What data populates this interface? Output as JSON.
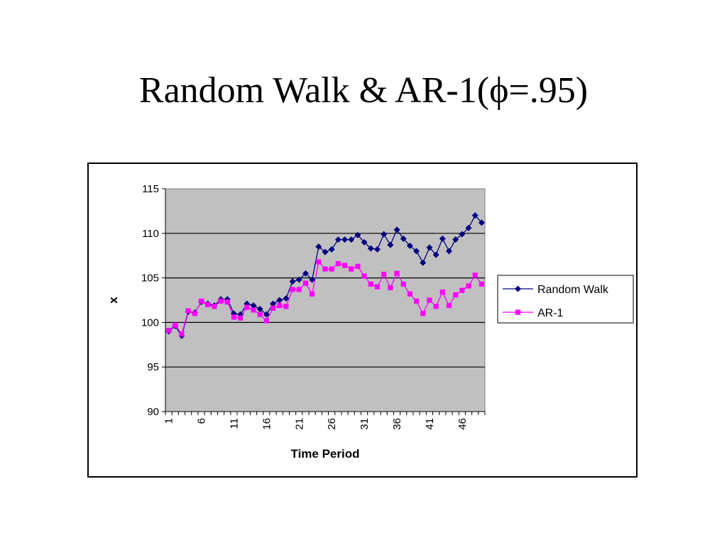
{
  "slide": {
    "title_prefix": "Random Walk & AR-1(",
    "title_symbol": "ϕ",
    "title_suffix": "=.95)"
  },
  "chart_data": {
    "type": "line",
    "xlabel": "Time Period",
    "ylabel": "x",
    "ylim": [
      90,
      115
    ],
    "yticks": [
      90,
      95,
      100,
      105,
      110,
      115
    ],
    "xlim": [
      1,
      49
    ],
    "xticks": [
      1,
      6,
      11,
      16,
      21,
      26,
      31,
      36,
      41,
      46
    ],
    "grid": "horizontal",
    "legend_position": "right",
    "plot_background": "#c0c0c0",
    "x": [
      1,
      2,
      3,
      4,
      5,
      6,
      7,
      8,
      9,
      10,
      11,
      12,
      13,
      14,
      15,
      16,
      17,
      18,
      19,
      20,
      21,
      22,
      23,
      24,
      25,
      26,
      27,
      28,
      29,
      30,
      31,
      32,
      33,
      34,
      35,
      36,
      37,
      38,
      39,
      40,
      41,
      42,
      43,
      44,
      45,
      46,
      47,
      48,
      49
    ],
    "series": [
      {
        "name": "Random Walk",
        "color": "#000080",
        "marker": "diamond",
        "values": [
          99.0,
          99.6,
          98.5,
          101.2,
          101.1,
          102.3,
          102.1,
          101.9,
          102.6,
          102.6,
          101.0,
          100.9,
          102.1,
          101.9,
          101.5,
          100.9,
          102.1,
          102.5,
          102.7,
          104.6,
          104.8,
          105.5,
          104.8,
          108.5,
          107.9,
          108.2,
          109.3,
          109.3,
          109.3,
          109.8,
          109.0,
          108.3,
          108.2,
          109.9,
          108.7,
          110.4,
          109.4,
          108.6,
          108.0,
          106.7,
          108.4,
          107.6,
          109.4,
          108.0,
          109.3,
          109.9,
          110.6,
          112.0,
          111.2
        ]
      },
      {
        "name": "AR-1",
        "color": "#ff00ff",
        "marker": "square",
        "values": [
          99.1,
          99.7,
          98.7,
          101.3,
          101.0,
          102.4,
          102.0,
          101.8,
          102.4,
          102.3,
          100.6,
          100.5,
          101.7,
          101.4,
          100.9,
          100.2,
          101.6,
          101.9,
          101.8,
          103.7,
          103.7,
          104.4,
          103.2,
          106.8,
          106.0,
          106.0,
          106.6,
          106.4,
          106.0,
          106.3,
          105.2,
          104.3,
          104.0,
          105.4,
          103.9,
          105.5,
          104.3,
          103.2,
          102.4,
          101.0,
          102.5,
          101.8,
          103.4,
          101.9,
          103.1,
          103.6,
          104.1,
          105.3,
          104.3
        ]
      }
    ]
  }
}
